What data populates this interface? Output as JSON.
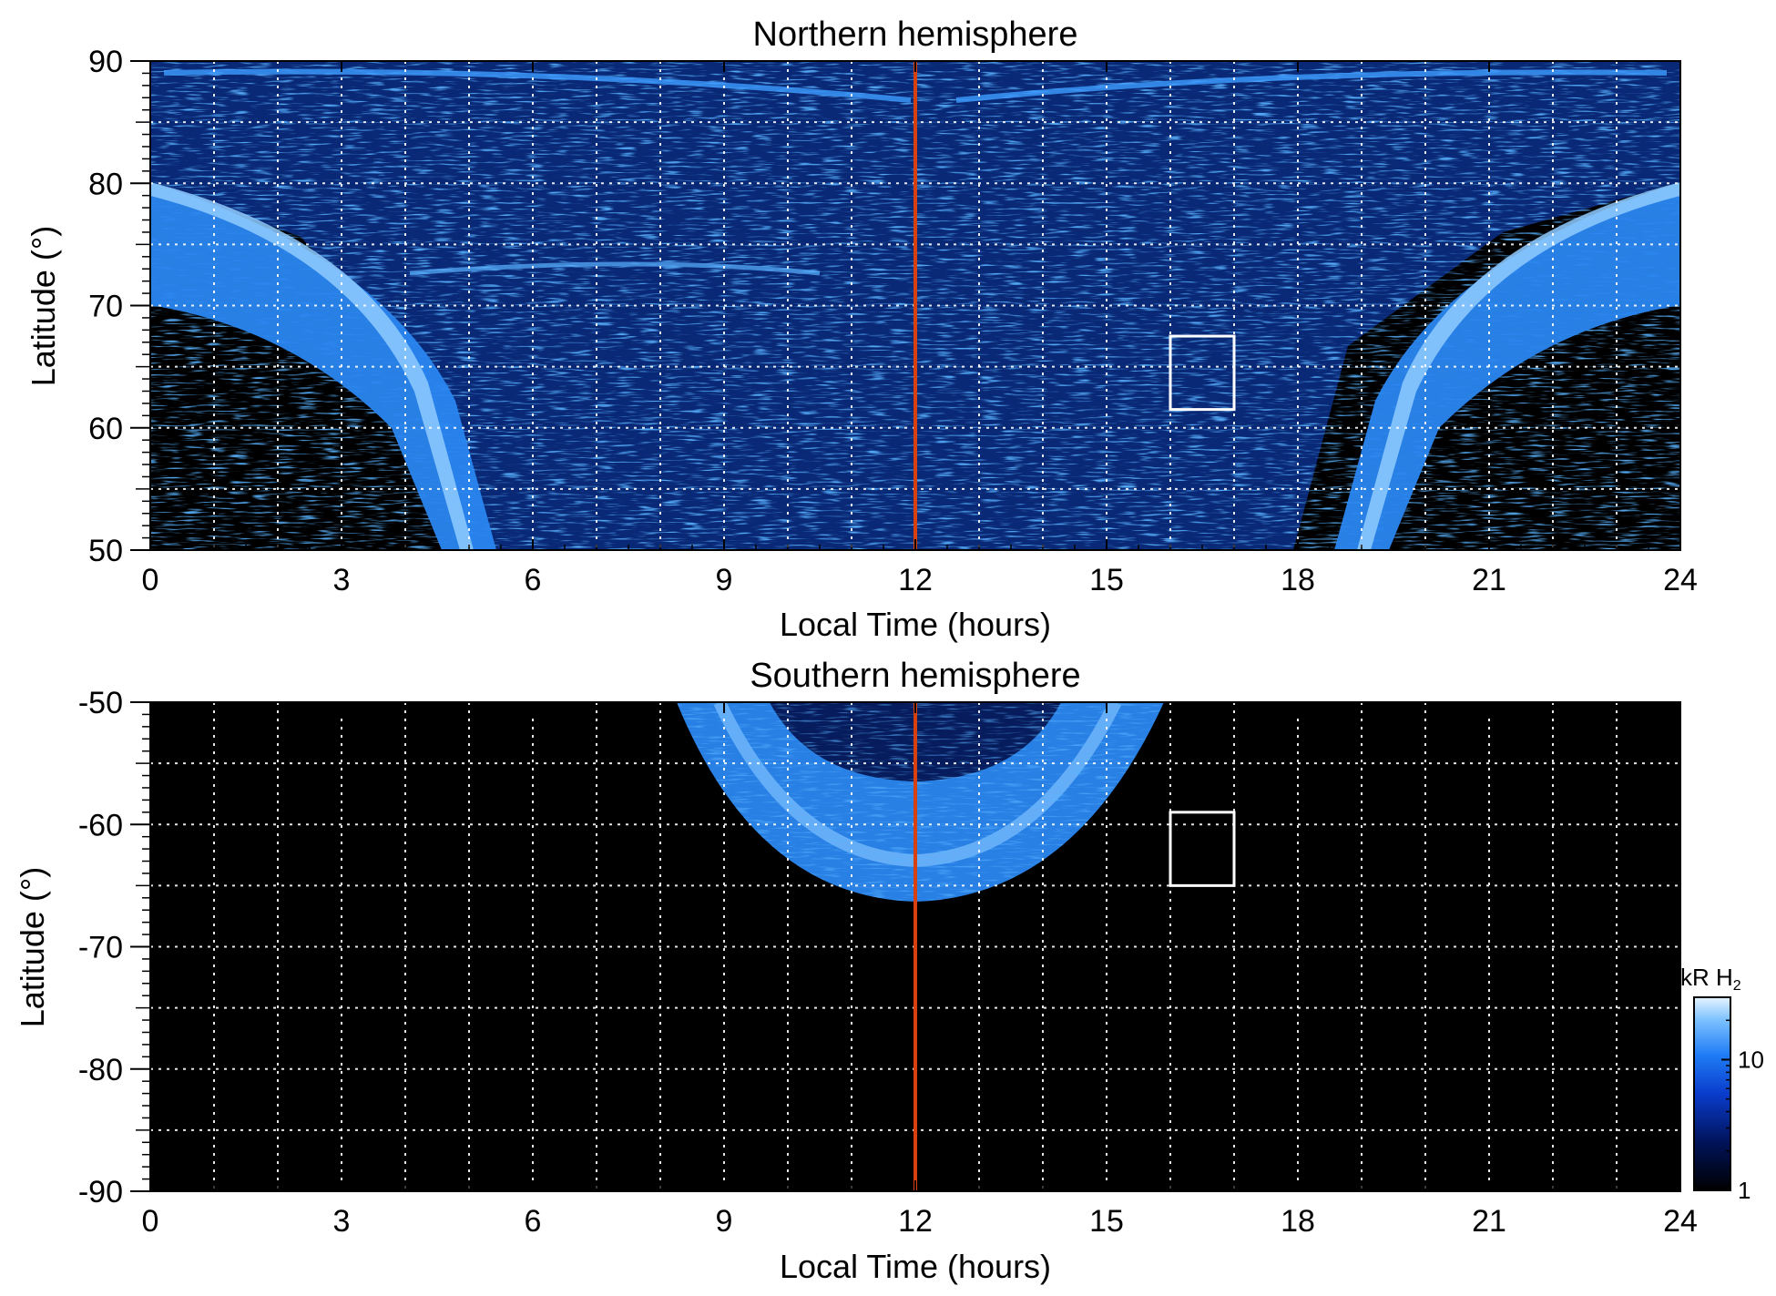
{
  "chart_data": [
    {
      "type": "heatmap",
      "title": "Northern hemisphere",
      "xlabel": "Local Time (hours)",
      "ylabel": "Latitude (°)",
      "xlim": [
        0,
        24
      ],
      "ylim": [
        50,
        90
      ],
      "xticks": [
        "0",
        "3",
        "6",
        "9",
        "12",
        "15",
        "18",
        "21",
        "24"
      ],
      "yticks": [
        "50",
        "60",
        "70",
        "80",
        "90"
      ],
      "grid": true,
      "grid_x_step_hours": 1,
      "grid_y_step_deg": 5,
      "noon_marker": {
        "local_time": 12,
        "color": "#d84010"
      },
      "highlight_box": {
        "lt_range": [
          16,
          17
        ],
        "lat_range": [
          61.5,
          67.5
        ]
      },
      "emission_features": [
        {
          "name": "dawn auroral oval",
          "lt_top": [
            0,
            1
          ],
          "lt_bottom": [
            3.8,
            5.3
          ],
          "lat_top": 80,
          "lat_bottom": 50
        },
        {
          "name": "dusk auroral oval",
          "lt_top": [
            23,
            24
          ],
          "lt_bottom": [
            18.7,
            20.2
          ],
          "lat_top": 80,
          "lat_bottom": 50
        },
        {
          "name": "diffuse dayside emission",
          "lt_range": [
            5,
            19
          ],
          "lat_range": [
            50,
            90
          ]
        }
      ]
    },
    {
      "type": "heatmap",
      "title": "Southern hemisphere",
      "xlabel": "Local Time (hours)",
      "ylabel": "Latitude (°)",
      "xlim": [
        0,
        24
      ],
      "ylim": [
        -90,
        -50
      ],
      "xticks": [
        "0",
        "3",
        "6",
        "9",
        "12",
        "15",
        "18",
        "21",
        "24"
      ],
      "yticks": [
        "-50",
        "-60",
        "-70",
        "-80",
        "-90"
      ],
      "grid": true,
      "grid_x_step_hours": 1,
      "grid_y_step_deg": 5,
      "noon_marker": {
        "local_time": 12,
        "color": "#d84010"
      },
      "highlight_box": {
        "lt_range": [
          16,
          17
        ],
        "lat_range": [
          -65,
          -59
        ]
      },
      "emission_features": [
        {
          "name": "southern auroral oval",
          "center_lt": 12,
          "lt_edge_range": [
            8.5,
            16.2
          ],
          "lat_edge": -50,
          "lat_inner": -56.5,
          "lat_outer": -67
        }
      ]
    }
  ],
  "colorbar": {
    "label_main": "kR H",
    "label_sub": "2",
    "scale": "log",
    "range": [
      1,
      30
    ],
    "tick_labels": [
      "10",
      "1"
    ],
    "tick_values": [
      10,
      1
    ],
    "colors": [
      "#000000",
      "#00135a",
      "#0a3ccc",
      "#1f7cf5",
      "#7ac0ff",
      "#e6f4ff"
    ]
  }
}
